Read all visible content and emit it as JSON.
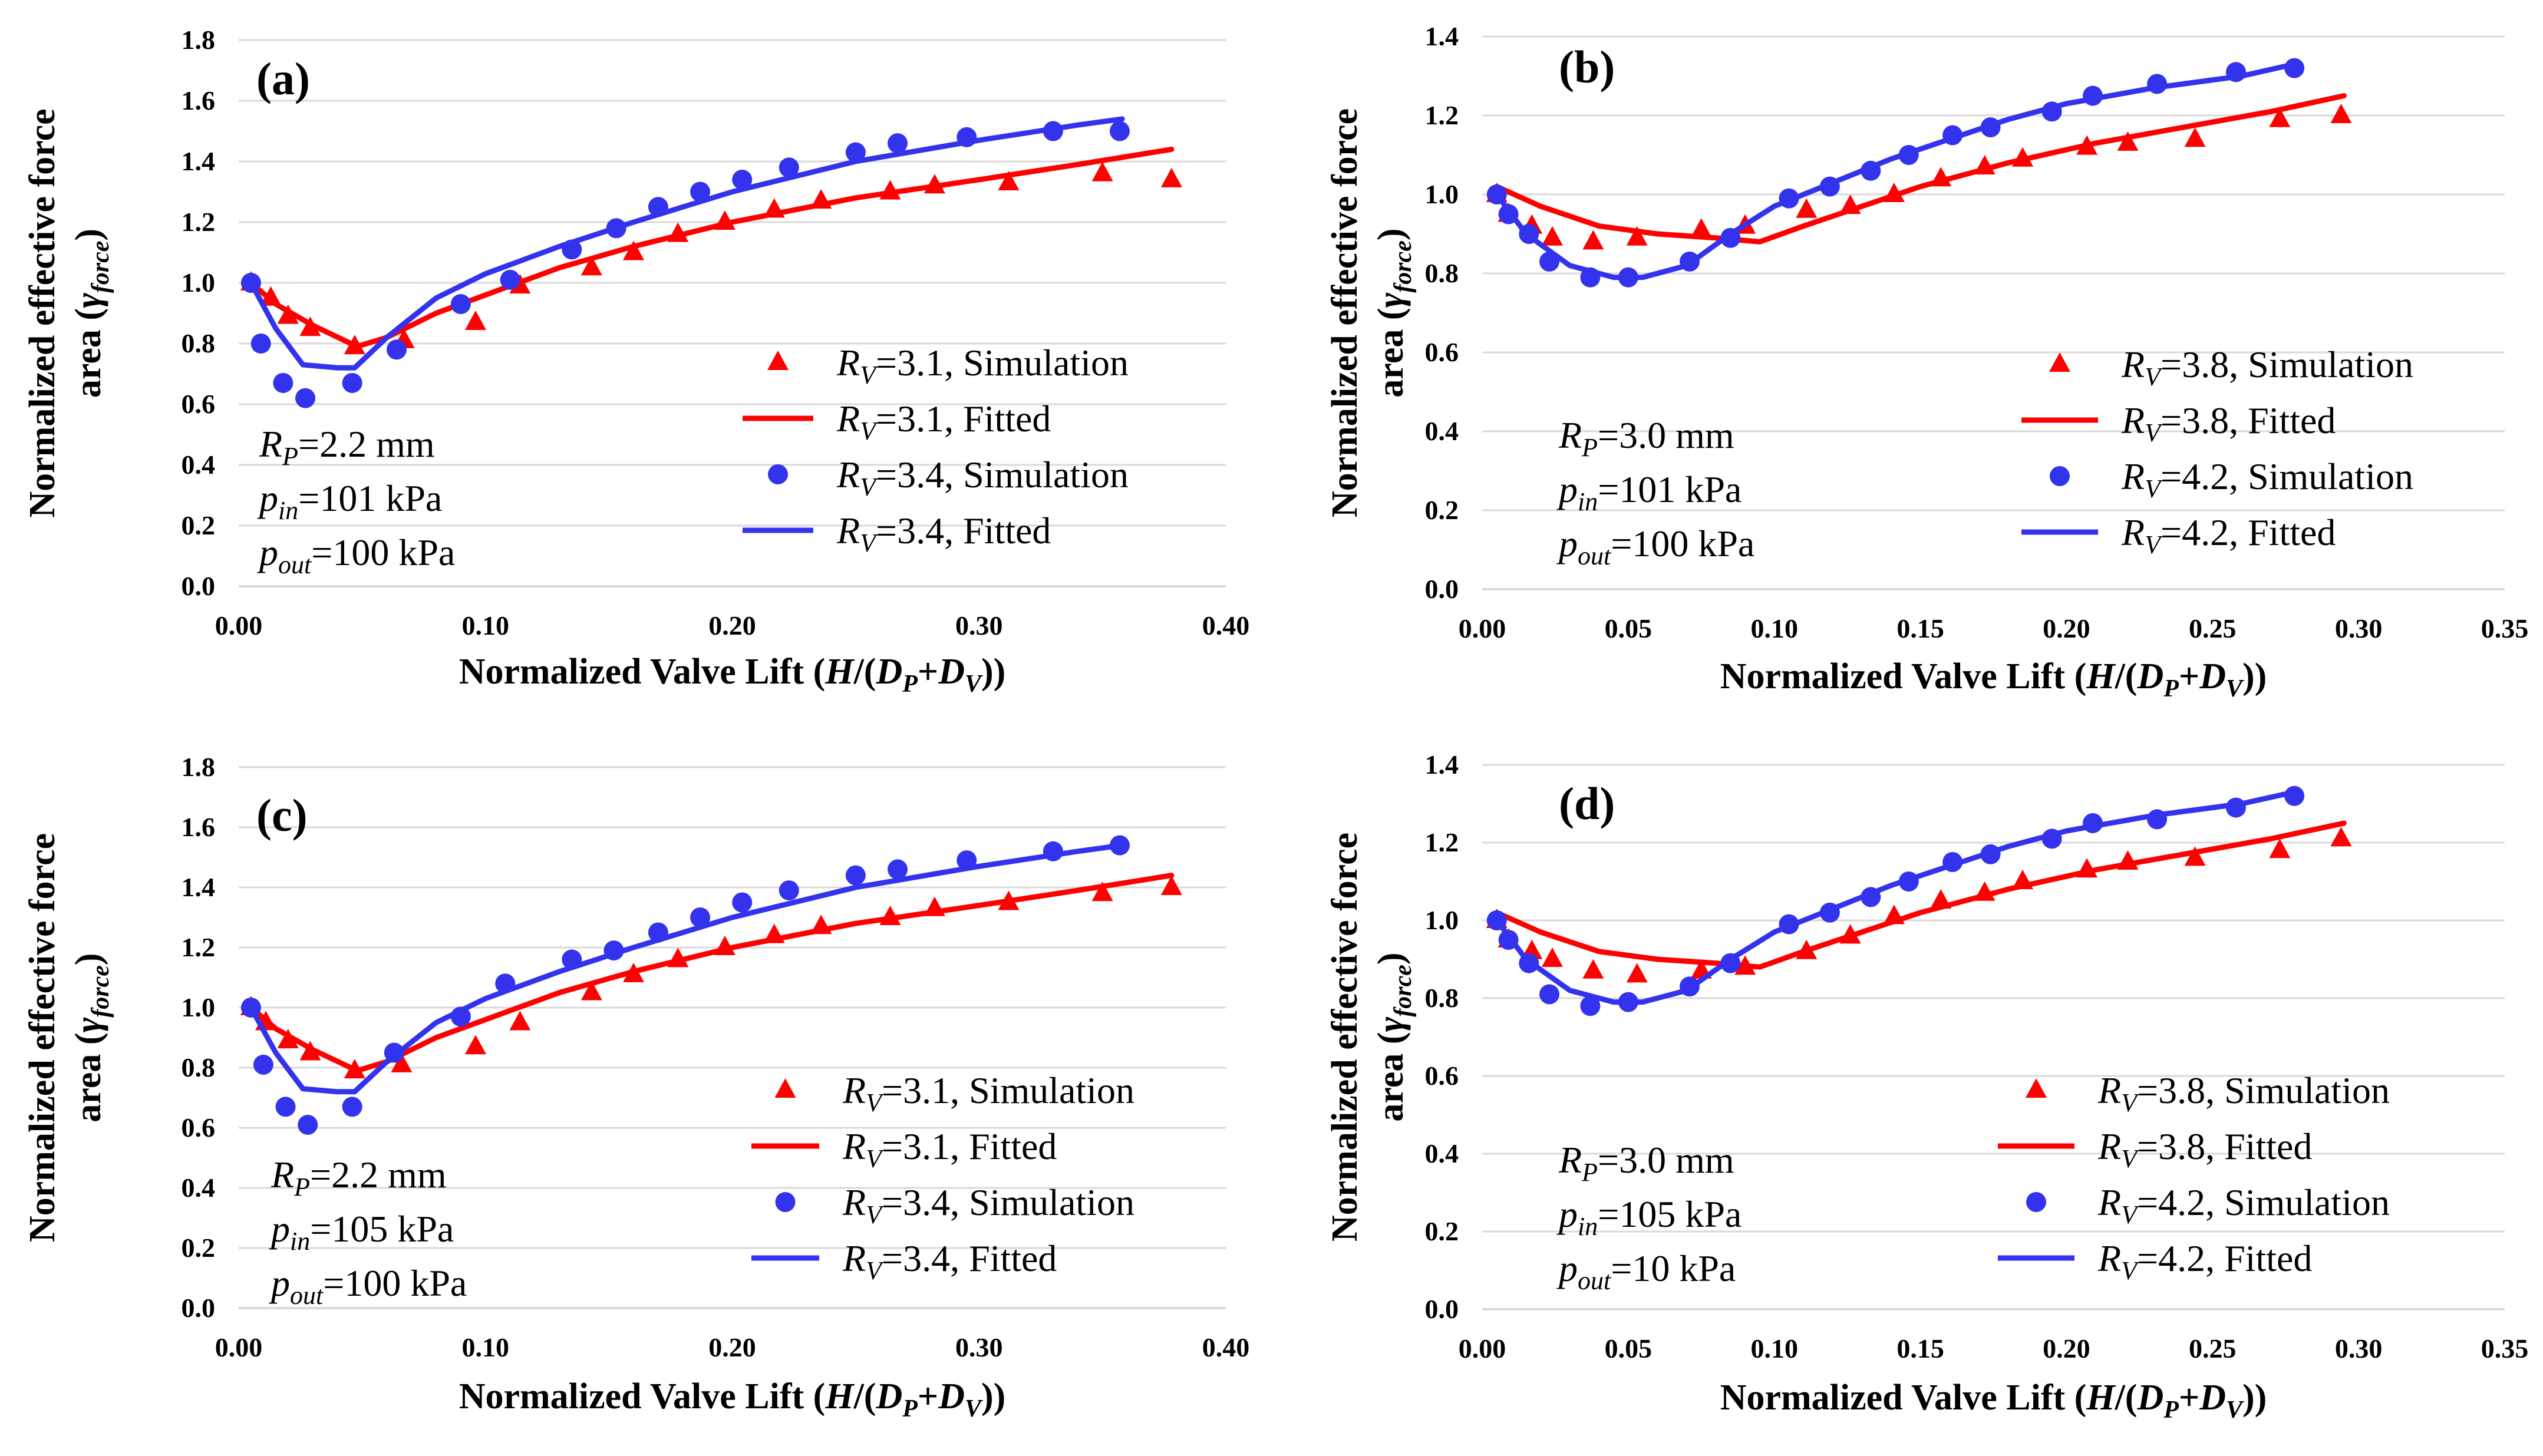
{
  "colors": {
    "red": "#ff0000",
    "blue": "#3333ee",
    "grid": "#d9d9d9",
    "axis": "#d9d9d9",
    "text": "#000000"
  },
  "chart_data": [
    {
      "panel": "(a)",
      "type": "scatter+line",
      "xlabel": "Normalized Valve Lift (H/(D_P+D_V))",
      "ylabel_line1": "Normalized effective force",
      "ylabel_line2": "area (γ_force)",
      "xlim": [
        0,
        0.4
      ],
      "xstep": 0.1,
      "xdec": 2,
      "ylim": [
        0,
        1.8
      ],
      "ystep": 0.2,
      "ydec": 1,
      "annotation": [
        {
          "sym": "R",
          "sub": "P",
          "rest": "=2.2 mm"
        },
        {
          "sym": "p",
          "sub": "in",
          "rest": "=101 kPa"
        },
        {
          "sym": "p",
          "sub": "out",
          "rest": "=100 kPa"
        }
      ],
      "series": [
        {
          "name": "RV=3.1, Simulation",
          "label_sym": "R",
          "label_sub": "V",
          "label_rest": "=3.1, Simulation",
          "kind": "marker",
          "marker": "triangle",
          "color": "red",
          "x": [
            0.005,
            0.013,
            0.02,
            0.029,
            0.047,
            0.067,
            0.096,
            0.114,
            0.143,
            0.16,
            0.178,
            0.197,
            0.217,
            0.236,
            0.264,
            0.282,
            0.312,
            0.35,
            0.378
          ],
          "y": [
            1.0,
            0.95,
            0.89,
            0.85,
            0.79,
            0.81,
            0.87,
            0.99,
            1.05,
            1.1,
            1.16,
            1.2,
            1.24,
            1.27,
            1.3,
            1.32,
            1.33,
            1.36,
            1.34
          ]
        },
        {
          "name": "RV=3.1, Fitted",
          "label_sym": "R",
          "label_sub": "V",
          "label_rest": "=3.1, Fitted",
          "kind": "line",
          "color": "red",
          "x": [
            0.005,
            0.015,
            0.03,
            0.048,
            0.06,
            0.08,
            0.1,
            0.13,
            0.16,
            0.2,
            0.25,
            0.3,
            0.34,
            0.378
          ],
          "y": [
            1.0,
            0.93,
            0.86,
            0.79,
            0.82,
            0.9,
            0.96,
            1.05,
            1.12,
            1.2,
            1.28,
            1.34,
            1.39,
            1.44
          ]
        },
        {
          "name": "RV=3.4, Simulation",
          "label_sym": "R",
          "label_sub": "V",
          "label_rest": "=3.4, Simulation",
          "kind": "marker",
          "marker": "circle",
          "color": "blue",
          "x": [
            0.005,
            0.009,
            0.018,
            0.027,
            0.046,
            0.064,
            0.09,
            0.11,
            0.135,
            0.153,
            0.17,
            0.187,
            0.204,
            0.223,
            0.25,
            0.267,
            0.295,
            0.33,
            0.357
          ],
          "y": [
            1.0,
            0.8,
            0.67,
            0.62,
            0.67,
            0.78,
            0.93,
            1.01,
            1.11,
            1.18,
            1.25,
            1.3,
            1.34,
            1.38,
            1.43,
            1.46,
            1.48,
            1.5,
            1.5
          ]
        },
        {
          "name": "RV=3.4, Fitted",
          "label_sym": "R",
          "label_sub": "V",
          "label_rest": "=3.4, Fitted",
          "kind": "line",
          "color": "blue",
          "x": [
            0.005,
            0.015,
            0.026,
            0.04,
            0.047,
            0.06,
            0.08,
            0.1,
            0.13,
            0.16,
            0.2,
            0.25,
            0.3,
            0.34,
            0.358
          ],
          "y": [
            1.0,
            0.85,
            0.73,
            0.72,
            0.72,
            0.82,
            0.95,
            1.03,
            1.12,
            1.2,
            1.3,
            1.4,
            1.47,
            1.52,
            1.54
          ]
        }
      ]
    },
    {
      "panel": "(b)",
      "type": "scatter+line",
      "xlabel": "Normalized Valve Lift (H/(D_P+D_V))",
      "ylabel_line1": "Normalized effective force",
      "ylabel_line2": "area (γ_force)",
      "xlim": [
        0,
        0.35
      ],
      "xstep": 0.05,
      "xdec": 2,
      "ylim": [
        0,
        1.4
      ],
      "ystep": 0.2,
      "ydec": 1,
      "annotation": [
        {
          "sym": "R",
          "sub": "P",
          "rest": "=3.0 mm"
        },
        {
          "sym": "p",
          "sub": "in",
          "rest": "=101 kPa"
        },
        {
          "sym": "p",
          "sub": "out",
          "rest": "=100 kPa"
        }
      ],
      "series": [
        {
          "name": "RV=3.8, Simulation",
          "label_sym": "R",
          "label_sub": "V",
          "label_rest": "=3.8, Simulation",
          "kind": "marker",
          "marker": "triangle",
          "color": "red",
          "x": [
            0.005,
            0.009,
            0.017,
            0.024,
            0.038,
            0.053,
            0.075,
            0.09,
            0.111,
            0.126,
            0.141,
            0.157,
            0.172,
            0.185,
            0.207,
            0.221,
            0.244,
            0.273,
            0.294
          ],
          "y": [
            1.0,
            0.95,
            0.92,
            0.89,
            0.88,
            0.89,
            0.91,
            0.92,
            0.96,
            0.97,
            1.0,
            1.04,
            1.07,
            1.09,
            1.12,
            1.13,
            1.14,
            1.19,
            1.2
          ]
        },
        {
          "name": "RV=3.8, Fitted",
          "label_sym": "R",
          "label_sub": "V",
          "label_rest": "=3.8, Fitted",
          "kind": "line",
          "color": "red",
          "x": [
            0.005,
            0.02,
            0.04,
            0.06,
            0.08,
            0.095,
            0.11,
            0.13,
            0.15,
            0.18,
            0.21,
            0.24,
            0.27,
            0.295
          ],
          "y": [
            1.02,
            0.97,
            0.92,
            0.9,
            0.89,
            0.88,
            0.92,
            0.97,
            1.02,
            1.08,
            1.13,
            1.17,
            1.21,
            1.25
          ]
        },
        {
          "name": "RV=4.2, Simulation",
          "label_sym": "R",
          "label_sub": "V",
          "label_rest": "=4.2, Simulation",
          "kind": "marker",
          "marker": "circle",
          "color": "blue",
          "x": [
            0.005,
            0.009,
            0.016,
            0.023,
            0.037,
            0.05,
            0.071,
            0.085,
            0.105,
            0.119,
            0.133,
            0.146,
            0.161,
            0.174,
            0.195,
            0.209,
            0.231,
            0.258,
            0.278
          ],
          "y": [
            1.0,
            0.95,
            0.9,
            0.83,
            0.79,
            0.79,
            0.83,
            0.89,
            0.99,
            1.02,
            1.06,
            1.1,
            1.15,
            1.17,
            1.21,
            1.25,
            1.28,
            1.31,
            1.32
          ]
        },
        {
          "name": "RV=4.2, Fitted",
          "label_sym": "R",
          "label_sub": "V",
          "label_rest": "=4.2, Fitted",
          "kind": "line",
          "color": "blue",
          "x": [
            0.005,
            0.015,
            0.03,
            0.045,
            0.055,
            0.07,
            0.085,
            0.1,
            0.12,
            0.14,
            0.16,
            0.18,
            0.2,
            0.23,
            0.26,
            0.278
          ],
          "y": [
            1.0,
            0.9,
            0.82,
            0.79,
            0.79,
            0.82,
            0.9,
            0.97,
            1.03,
            1.09,
            1.14,
            1.19,
            1.23,
            1.27,
            1.3,
            1.33
          ]
        }
      ]
    },
    {
      "panel": "(c)",
      "type": "scatter+line",
      "xlabel": "Normalized Valve Lift (H/(D_P+D_V))",
      "ylabel_line1": "Normalized effective force",
      "ylabel_line2": "area (γ_force)",
      "xlim": [
        0,
        0.4
      ],
      "xstep": 0.1,
      "xdec": 2,
      "ylim": [
        0,
        1.8
      ],
      "ystep": 0.2,
      "ydec": 1,
      "annotation": [
        {
          "sym": "R",
          "sub": "P",
          "rest": "=2.2 mm"
        },
        {
          "sym": "p",
          "sub": "in",
          "rest": "=105 kPa"
        },
        {
          "sym": "p",
          "sub": "out",
          "rest": "=100 kPa"
        }
      ],
      "series": [
        {
          "name": "RV=3.1, Simulation",
          "label_sym": "R",
          "label_sub": "V",
          "label_rest": "=3.1, Simulation",
          "kind": "marker",
          "marker": "triangle",
          "color": "red",
          "x": [
            0.005,
            0.011,
            0.02,
            0.029,
            0.047,
            0.066,
            0.096,
            0.114,
            0.143,
            0.16,
            0.178,
            0.197,
            0.217,
            0.236,
            0.264,
            0.282,
            0.312,
            0.35,
            0.378
          ],
          "y": [
            1.0,
            0.95,
            0.89,
            0.85,
            0.79,
            0.81,
            0.87,
            0.95,
            1.05,
            1.11,
            1.16,
            1.2,
            1.24,
            1.27,
            1.3,
            1.33,
            1.35,
            1.38,
            1.4
          ]
        },
        {
          "name": "RV=3.1, Fitted",
          "label_sym": "R",
          "label_sub": "V",
          "label_rest": "=3.1, Fitted",
          "kind": "line",
          "color": "red",
          "x": [
            0.005,
            0.015,
            0.03,
            0.048,
            0.06,
            0.08,
            0.1,
            0.13,
            0.16,
            0.2,
            0.25,
            0.3,
            0.34,
            0.378
          ],
          "y": [
            1.0,
            0.93,
            0.86,
            0.79,
            0.82,
            0.9,
            0.96,
            1.05,
            1.12,
            1.2,
            1.28,
            1.34,
            1.39,
            1.44
          ]
        },
        {
          "name": "RV=3.4, Simulation",
          "label_sym": "R",
          "label_sub": "V",
          "label_rest": "=3.4, Simulation",
          "kind": "marker",
          "marker": "circle",
          "color": "blue",
          "x": [
            0.005,
            0.01,
            0.019,
            0.028,
            0.046,
            0.063,
            0.09,
            0.108,
            0.135,
            0.152,
            0.17,
            0.187,
            0.204,
            0.223,
            0.25,
            0.267,
            0.295,
            0.33,
            0.357
          ],
          "y": [
            1.0,
            0.81,
            0.67,
            0.61,
            0.67,
            0.85,
            0.97,
            1.08,
            1.16,
            1.19,
            1.25,
            1.3,
            1.35,
            1.39,
            1.44,
            1.46,
            1.49,
            1.52,
            1.54
          ]
        },
        {
          "name": "RV=3.4, Fitted",
          "label_sym": "R",
          "label_sub": "V",
          "label_rest": "=3.4, Fitted",
          "kind": "line",
          "color": "blue",
          "x": [
            0.005,
            0.015,
            0.026,
            0.04,
            0.047,
            0.06,
            0.08,
            0.1,
            0.13,
            0.16,
            0.2,
            0.25,
            0.3,
            0.34,
            0.358
          ],
          "y": [
            1.0,
            0.85,
            0.73,
            0.72,
            0.72,
            0.82,
            0.95,
            1.03,
            1.12,
            1.2,
            1.3,
            1.4,
            1.47,
            1.52,
            1.54
          ]
        }
      ]
    },
    {
      "panel": "(d)",
      "type": "scatter+line",
      "xlabel": "Normalized Valve Lift (H/(D_P+D_V))",
      "ylabel_line1": "Normalized effective force",
      "ylabel_line2": "area (γ_force)",
      "xlim": [
        0,
        0.35
      ],
      "xstep": 0.05,
      "xdec": 2,
      "ylim": [
        0,
        1.4
      ],
      "ystep": 0.2,
      "ydec": 1,
      "annotation": [
        {
          "sym": "R",
          "sub": "P",
          "rest": "=3.0 mm"
        },
        {
          "sym": "p",
          "sub": "in",
          "rest": "=105 kPa"
        },
        {
          "sym": "p",
          "sub": "out",
          "rest": "=10 kPa"
        }
      ],
      "series": [
        {
          "name": "RV=3.8, Simulation",
          "label_sym": "R",
          "label_sub": "V",
          "label_rest": "=3.8, Simulation",
          "kind": "marker",
          "marker": "triangle",
          "color": "red",
          "x": [
            0.005,
            0.009,
            0.017,
            0.024,
            0.038,
            0.053,
            0.075,
            0.09,
            0.111,
            0.126,
            0.141,
            0.157,
            0.172,
            0.185,
            0.207,
            0.221,
            0.244,
            0.273,
            0.294
          ],
          "y": [
            1.0,
            0.95,
            0.92,
            0.9,
            0.87,
            0.86,
            0.87,
            0.88,
            0.92,
            0.96,
            1.01,
            1.05,
            1.07,
            1.1,
            1.13,
            1.15,
            1.16,
            1.18,
            1.21
          ]
        },
        {
          "name": "RV=3.8, Fitted",
          "label_sym": "R",
          "label_sub": "V",
          "label_rest": "=3.8, Fitted",
          "kind": "line",
          "color": "red",
          "x": [
            0.005,
            0.02,
            0.04,
            0.06,
            0.08,
            0.095,
            0.11,
            0.13,
            0.15,
            0.18,
            0.21,
            0.24,
            0.27,
            0.295
          ],
          "y": [
            1.02,
            0.97,
            0.92,
            0.9,
            0.89,
            0.88,
            0.92,
            0.97,
            1.02,
            1.08,
            1.13,
            1.17,
            1.21,
            1.25
          ]
        },
        {
          "name": "RV=4.2, Simulation",
          "label_sym": "R",
          "label_sub": "V",
          "label_rest": "=4.2, Simulation",
          "kind": "marker",
          "marker": "circle",
          "color": "blue",
          "x": [
            0.005,
            0.009,
            0.016,
            0.023,
            0.037,
            0.05,
            0.071,
            0.085,
            0.105,
            0.119,
            0.133,
            0.146,
            0.161,
            0.174,
            0.195,
            0.209,
            0.231,
            0.258,
            0.278
          ],
          "y": [
            1.0,
            0.95,
            0.89,
            0.81,
            0.78,
            0.79,
            0.83,
            0.89,
            0.99,
            1.02,
            1.06,
            1.1,
            1.15,
            1.17,
            1.21,
            1.25,
            1.26,
            1.29,
            1.32
          ]
        },
        {
          "name": "RV=4.2, Fitted",
          "label_sym": "R",
          "label_sub": "V",
          "label_rest": "=4.2, Fitted",
          "kind": "line",
          "color": "blue",
          "x": [
            0.005,
            0.015,
            0.03,
            0.045,
            0.055,
            0.07,
            0.085,
            0.1,
            0.12,
            0.14,
            0.16,
            0.18,
            0.2,
            0.23,
            0.26,
            0.278
          ],
          "y": [
            1.0,
            0.9,
            0.82,
            0.79,
            0.79,
            0.82,
            0.9,
            0.97,
            1.03,
            1.09,
            1.14,
            1.19,
            1.23,
            1.27,
            1.3,
            1.33
          ]
        }
      ]
    }
  ]
}
